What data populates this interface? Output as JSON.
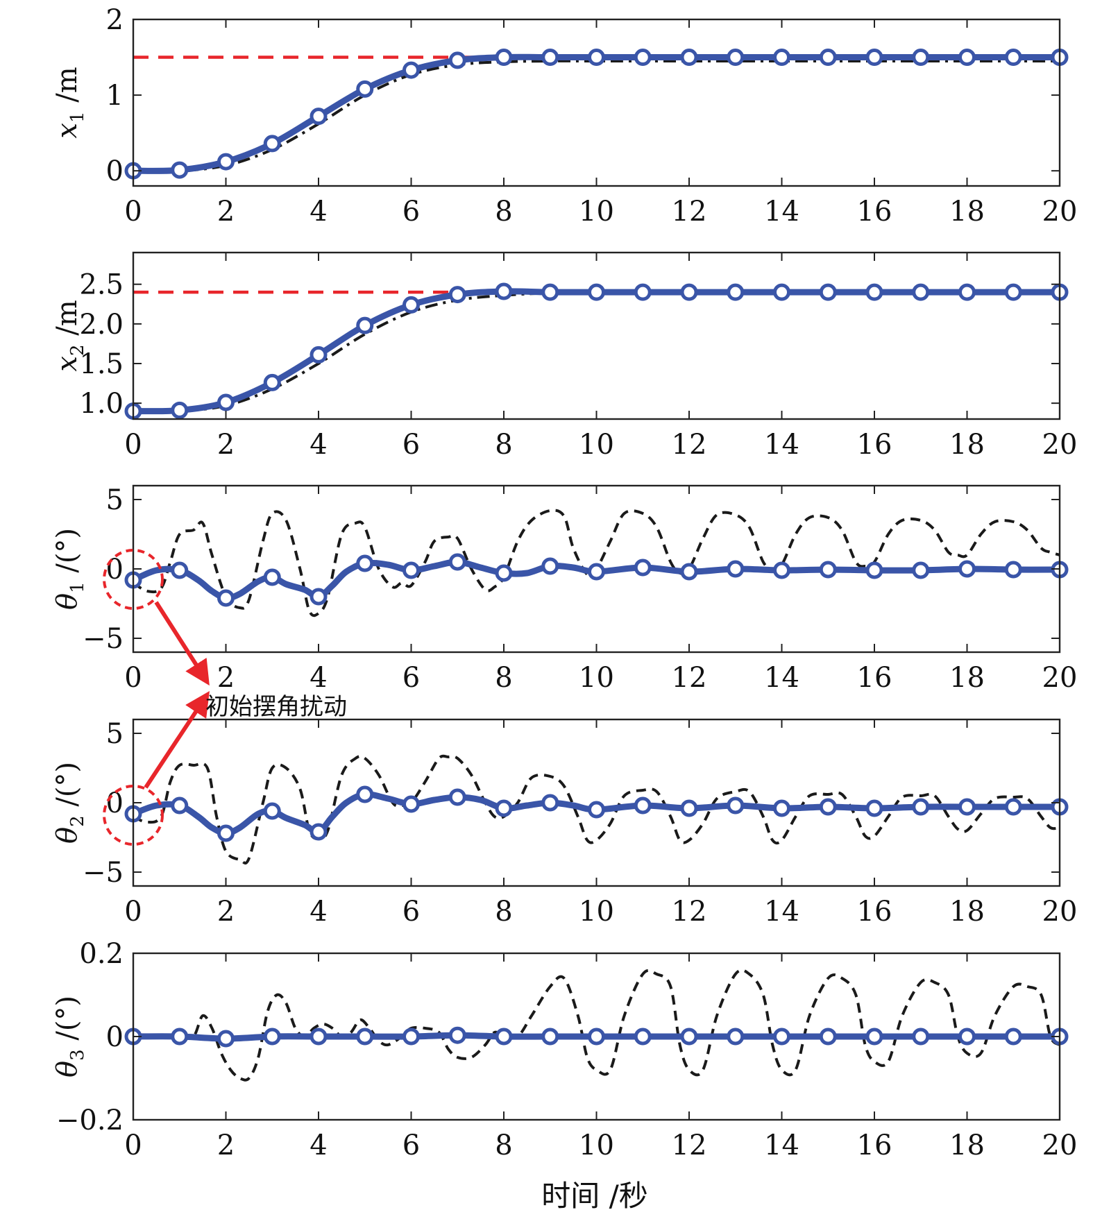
{
  "colors": {
    "reference": "#e8262b",
    "proposed": "#3a55a8",
    "comparison": "#1a1a1a",
    "annotation": "#e8262b"
  },
  "xaxis": {
    "label": "时间 /秒",
    "range": [
      0,
      20
    ],
    "ticks": [
      0,
      2,
      4,
      6,
      8,
      10,
      12,
      14,
      16,
      18,
      20
    ]
  },
  "annotation": {
    "text": "初始摆角扰动"
  },
  "chart_data": [
    {
      "type": "line",
      "ylabel_var": "x",
      "ylabel_sub": "1",
      "ylabel_unit": " /m",
      "ylim": [
        -0.2,
        2
      ],
      "yticks": [
        0,
        1,
        2
      ],
      "ytick_labels": [
        "0",
        "1",
        "2"
      ],
      "grid": false,
      "series": [
        {
          "role": "reference",
          "style": "dashed",
          "x": [
            0,
            20
          ],
          "y": [
            1.5,
            1.5
          ]
        },
        {
          "role": "comparison",
          "style": "dashdot",
          "x": [
            0,
            1,
            2,
            3,
            4,
            5,
            6,
            7,
            8,
            9,
            10,
            12,
            14,
            16,
            18,
            20
          ],
          "y": [
            0,
            0,
            0.07,
            0.28,
            0.62,
            1.0,
            1.27,
            1.4,
            1.44,
            1.45,
            1.45,
            1.45,
            1.45,
            1.45,
            1.45,
            1.45
          ]
        },
        {
          "role": "proposed",
          "style": "solid-marker",
          "x": [
            0,
            1,
            2,
            3,
            4,
            5,
            6,
            7,
            8,
            9,
            10,
            11,
            12,
            13,
            14,
            15,
            16,
            17,
            18,
            19,
            20
          ],
          "y": [
            0,
            0.01,
            0.12,
            0.36,
            0.72,
            1.08,
            1.33,
            1.46,
            1.5,
            1.5,
            1.5,
            1.5,
            1.5,
            1.5,
            1.5,
            1.5,
            1.5,
            1.5,
            1.5,
            1.5,
            1.5
          ],
          "marker_x": [
            0,
            1,
            2,
            3,
            4,
            5,
            6,
            7,
            8,
            9,
            10,
            11,
            12,
            13,
            14,
            15,
            16,
            17,
            18,
            19,
            20
          ]
        }
      ]
    },
    {
      "type": "line",
      "ylabel_var": "x",
      "ylabel_sub": "2",
      "ylabel_unit": " /m",
      "ylim": [
        0.8,
        2.9
      ],
      "yticks": [
        1.0,
        1.5,
        2.0,
        2.5
      ],
      "ytick_labels": [
        "1.0",
        "1.5",
        "2.0",
        "2.5"
      ],
      "grid": false,
      "series": [
        {
          "role": "reference",
          "style": "dashed",
          "x": [
            0,
            20
          ],
          "y": [
            2.4,
            2.4
          ]
        },
        {
          "role": "comparison",
          "style": "dashdot",
          "x": [
            0,
            1,
            2,
            3,
            4,
            5,
            6,
            7,
            8,
            9,
            10,
            12,
            14,
            16,
            18,
            20
          ],
          "y": [
            0.9,
            0.9,
            0.97,
            1.18,
            1.5,
            1.87,
            2.15,
            2.3,
            2.36,
            2.39,
            2.4,
            2.4,
            2.4,
            2.4,
            2.4,
            2.4
          ]
        },
        {
          "role": "proposed",
          "style": "solid-marker",
          "x": [
            0,
            1,
            2,
            3,
            4,
            5,
            6,
            7,
            8,
            9,
            10,
            11,
            12,
            13,
            14,
            15,
            16,
            17,
            18,
            19,
            20
          ],
          "y": [
            0.9,
            0.91,
            1.01,
            1.26,
            1.61,
            1.98,
            2.24,
            2.37,
            2.41,
            2.4,
            2.4,
            2.4,
            2.4,
            2.4,
            2.4,
            2.4,
            2.4,
            2.4,
            2.4,
            2.4,
            2.4
          ],
          "marker_x": [
            0,
            1,
            2,
            3,
            4,
            5,
            6,
            7,
            8,
            9,
            10,
            11,
            12,
            13,
            14,
            15,
            16,
            17,
            18,
            19,
            20
          ]
        }
      ]
    },
    {
      "type": "line",
      "ylabel_var": "θ",
      "ylabel_sub": "1",
      "ylabel_unit": " /(°)",
      "ylim": [
        -6,
        6
      ],
      "yticks": [
        -5,
        0,
        5
      ],
      "ytick_labels": [
        "−5",
        "0",
        "5"
      ],
      "grid": false,
      "series": [
        {
          "role": "comparison",
          "style": "dashed",
          "x": [
            0,
            0.3,
            0.6,
            0.8,
            1.0,
            1.3,
            1.5,
            1.7,
            2.0,
            2.3,
            2.5,
            2.8,
            3.0,
            3.3,
            3.6,
            3.8,
            4.0,
            4.2,
            4.5,
            4.8,
            5.0,
            5.3,
            5.6,
            5.8,
            6.0,
            6.3,
            6.5,
            6.8,
            7.0,
            7.3,
            7.6,
            7.8,
            8.0,
            8.3,
            8.6,
            9.0,
            9.3,
            9.5,
            9.8,
            10.0,
            10.3,
            10.6,
            11.0,
            11.3,
            11.6,
            11.8,
            12.0,
            12.3,
            12.6,
            13.0,
            13.3,
            13.6,
            13.8,
            14.0,
            14.3,
            14.6,
            15.0,
            15.3,
            15.6,
            15.8,
            16.0,
            16.3,
            16.6,
            17.0,
            17.3,
            17.6,
            17.8,
            18.0,
            18.3,
            18.6,
            19.0,
            19.3,
            19.6,
            19.8,
            20.0
          ],
          "y": [
            -1.0,
            -1.6,
            -1.4,
            0.5,
            2.5,
            2.8,
            3.3,
            1.0,
            -2.0,
            -2.8,
            -2.2,
            2.0,
            4.0,
            3.5,
            0.0,
            -3.0,
            -3.2,
            -2.0,
            2.5,
            3.3,
            3.0,
            0.0,
            -1.3,
            -1.0,
            -1.2,
            0.5,
            2.0,
            2.3,
            2.2,
            0.0,
            -1.5,
            -1.3,
            -0.6,
            2.0,
            3.5,
            4.2,
            3.8,
            1.5,
            -0.4,
            0.0,
            2.0,
            4.0,
            4.0,
            3.0,
            0.5,
            -0.3,
            0.0,
            2.2,
            3.9,
            3.9,
            3.0,
            0.5,
            0.0,
            0.3,
            2.5,
            3.7,
            3.7,
            2.8,
            0.5,
            0.2,
            0.5,
            2.5,
            3.5,
            3.5,
            2.8,
            1.2,
            1.0,
            1.0,
            2.5,
            3.4,
            3.4,
            2.8,
            1.5,
            1.2,
            1.0
          ]
        },
        {
          "role": "proposed",
          "style": "solid-marker",
          "x": [
            0,
            0.5,
            1.0,
            1.4,
            1.7,
            2.0,
            2.3,
            2.7,
            3.0,
            3.3,
            3.7,
            4.0,
            4.3,
            4.6,
            5.0,
            5.5,
            6.0,
            6.5,
            7.0,
            7.5,
            8.0,
            8.5,
            9.0,
            9.5,
            10.0,
            11,
            12,
            13,
            14,
            15,
            16,
            17,
            18,
            19,
            20
          ],
          "y": [
            -0.8,
            -0.1,
            -0.1,
            -0.8,
            -1.6,
            -2.1,
            -1.8,
            -0.9,
            -0.6,
            -1.1,
            -1.5,
            -2.0,
            -1.2,
            -0.2,
            0.4,
            0.3,
            -0.1,
            0.2,
            0.5,
            0.1,
            -0.3,
            -0.3,
            0.2,
            0.1,
            -0.2,
            0.1,
            -0.2,
            0.0,
            -0.1,
            -0.05,
            -0.1,
            -0.1,
            0.0,
            -0.05,
            -0.05
          ],
          "marker_x": [
            0,
            1,
            2,
            3,
            4,
            5,
            6,
            7,
            8,
            9,
            10,
            11,
            12,
            13,
            14,
            15,
            16,
            17,
            18,
            19,
            20
          ]
        }
      ]
    },
    {
      "type": "line",
      "ylabel_var": "θ",
      "ylabel_sub": "2",
      "ylabel_unit": " /(°)",
      "ylim": [
        -6,
        6
      ],
      "yticks": [
        -5,
        0,
        5
      ],
      "ytick_labels": [
        "−5",
        "0",
        "5"
      ],
      "grid": false,
      "series": [
        {
          "role": "comparison",
          "style": "dashed",
          "x": [
            0,
            0.3,
            0.6,
            0.8,
            1.0,
            1.3,
            1.6,
            1.8,
            2.0,
            2.3,
            2.5,
            2.8,
            3.0,
            3.3,
            3.6,
            3.8,
            4.0,
            4.2,
            4.5,
            4.8,
            5.0,
            5.3,
            5.6,
            5.8,
            6.0,
            6.3,
            6.6,
            6.8,
            7.0,
            7.3,
            7.6,
            7.8,
            8.0,
            8.3,
            8.6,
            9.0,
            9.3,
            9.6,
            9.8,
            10.0,
            10.3,
            10.6,
            11.0,
            11.3,
            11.6,
            11.8,
            12.0,
            12.3,
            12.6,
            13.0,
            13.3,
            13.6,
            13.8,
            14.0,
            14.3,
            14.6,
            15.0,
            15.3,
            15.6,
            15.8,
            16.0,
            16.3,
            16.6,
            17.0,
            17.3,
            17.6,
            17.8,
            18.0,
            18.3,
            18.6,
            19.0,
            19.3,
            19.6,
            19.8,
            20.0
          ],
          "y": [
            -1.0,
            -1.4,
            -1.0,
            1.5,
            2.7,
            2.7,
            2.5,
            -1.0,
            -3.5,
            -4.1,
            -4.0,
            0.0,
            2.5,
            2.5,
            1.0,
            -2.0,
            -2.6,
            -2.0,
            2.0,
            3.2,
            3.2,
            2.0,
            0.0,
            -0.2,
            0.0,
            1.5,
            3.2,
            3.3,
            3.2,
            2.0,
            0.0,
            -1.0,
            -1.0,
            0.0,
            1.8,
            1.9,
            1.2,
            -1.0,
            -2.7,
            -2.7,
            -1.5,
            0.5,
            0.9,
            0.8,
            -1.0,
            -2.7,
            -2.7,
            -1.5,
            0.3,
            0.8,
            0.8,
            -1.0,
            -2.7,
            -2.7,
            -1.0,
            0.5,
            0.6,
            0.6,
            -1.0,
            -2.4,
            -2.4,
            -1.0,
            0.4,
            0.5,
            0.5,
            -1.0,
            -1.9,
            -2.0,
            -0.8,
            0.3,
            0.4,
            0.3,
            -1.0,
            -1.8,
            -1.8
          ]
        },
        {
          "role": "proposed",
          "style": "solid-marker",
          "x": [
            0,
            0.5,
            1.0,
            1.4,
            1.7,
            2.0,
            2.3,
            2.7,
            3.0,
            3.3,
            3.7,
            4.0,
            4.3,
            4.6,
            5.0,
            5.5,
            6.0,
            6.5,
            7.0,
            7.5,
            8.0,
            8.5,
            9.0,
            9.5,
            10.0,
            11,
            12,
            13,
            14,
            15,
            16,
            17,
            18,
            19,
            20
          ],
          "y": [
            -0.8,
            -0.2,
            -0.2,
            -1.0,
            -1.8,
            -2.2,
            -1.8,
            -0.8,
            -0.6,
            -1.1,
            -1.6,
            -2.1,
            -1.0,
            0.0,
            0.6,
            0.3,
            -0.1,
            0.2,
            0.4,
            0.2,
            -0.4,
            -0.2,
            0.0,
            -0.2,
            -0.5,
            -0.2,
            -0.4,
            -0.2,
            -0.4,
            -0.3,
            -0.4,
            -0.3,
            -0.3,
            -0.3,
            -0.3
          ],
          "marker_x": [
            0,
            1,
            2,
            3,
            4,
            5,
            6,
            7,
            8,
            9,
            10,
            11,
            12,
            13,
            14,
            15,
            16,
            17,
            18,
            19,
            20
          ]
        }
      ]
    },
    {
      "type": "line",
      "ylabel_var": "θ",
      "ylabel_sub": "3",
      "ylabel_unit": " /(°)",
      "ylim": [
        -0.2,
        0.2
      ],
      "yticks": [
        -0.2,
        0,
        0.2
      ],
      "ytick_labels": [
        "−0.2",
        "0",
        "0.2"
      ],
      "grid": false,
      "series": [
        {
          "role": "comparison",
          "style": "dashed",
          "x": [
            0,
            1.0,
            1.3,
            1.5,
            1.7,
            1.9,
            2.1,
            2.3,
            2.5,
            2.7,
            2.9,
            3.1,
            3.3,
            3.5,
            3.7,
            3.9,
            4.1,
            4.3,
            4.5,
            4.7,
            4.9,
            5.1,
            5.3,
            5.5,
            5.8,
            6.0,
            6.3,
            6.6,
            6.8,
            7.0,
            7.3,
            7.6,
            7.8,
            8.0,
            8.3,
            8.6,
            9.0,
            9.3,
            9.6,
            9.8,
            10.0,
            10.3,
            10.6,
            11.0,
            11.3,
            11.6,
            11.8,
            12.0,
            12.3,
            12.6,
            13.0,
            13.3,
            13.6,
            13.8,
            14.0,
            14.3,
            14.6,
            15.0,
            15.3,
            15.6,
            15.8,
            16.0,
            16.3,
            16.6,
            17.0,
            17.3,
            17.6,
            17.8,
            18.0,
            18.3,
            18.6,
            19.0,
            19.3,
            19.6,
            19.8,
            20.0
          ],
          "y": [
            0.0,
            0.0,
            0.0,
            0.05,
            0.02,
            -0.04,
            -0.08,
            -0.1,
            -0.1,
            -0.05,
            0.06,
            0.1,
            0.08,
            0.02,
            0.0,
            0.02,
            0.03,
            0.02,
            0.0,
            0.01,
            0.04,
            0.02,
            -0.01,
            -0.02,
            0.0,
            0.02,
            0.02,
            0.01,
            -0.03,
            -0.05,
            -0.05,
            -0.02,
            0.01,
            0.0,
            0.0,
            0.05,
            0.12,
            0.14,
            0.05,
            -0.05,
            -0.08,
            -0.08,
            0.05,
            0.15,
            0.15,
            0.12,
            -0.02,
            -0.08,
            -0.08,
            0.05,
            0.15,
            0.15,
            0.1,
            -0.02,
            -0.08,
            -0.08,
            0.05,
            0.14,
            0.14,
            0.1,
            -0.02,
            -0.06,
            -0.06,
            0.05,
            0.13,
            0.13,
            0.1,
            0.0,
            -0.04,
            -0.04,
            0.05,
            0.12,
            0.12,
            0.1,
            0.0,
            -0.02
          ]
        },
        {
          "role": "proposed",
          "style": "solid-marker",
          "x": [
            0,
            1,
            2,
            3,
            4,
            5,
            6,
            7,
            8,
            9,
            10,
            11,
            12,
            13,
            14,
            15,
            16,
            17,
            18,
            19,
            20
          ],
          "y": [
            0.0,
            0.0,
            -0.005,
            0.0,
            0.0,
            0.0,
            0.0,
            0.003,
            0.0,
            0.0,
            0.0,
            0.0,
            0.0,
            0.0,
            0.0,
            0.0,
            0.0,
            0.0,
            0.0,
            0.0,
            0.0
          ],
          "marker_x": [
            0,
            1,
            2,
            3,
            4,
            5,
            6,
            7,
            8,
            9,
            10,
            11,
            12,
            13,
            14,
            15,
            16,
            17,
            18,
            19,
            20
          ]
        }
      ]
    }
  ]
}
